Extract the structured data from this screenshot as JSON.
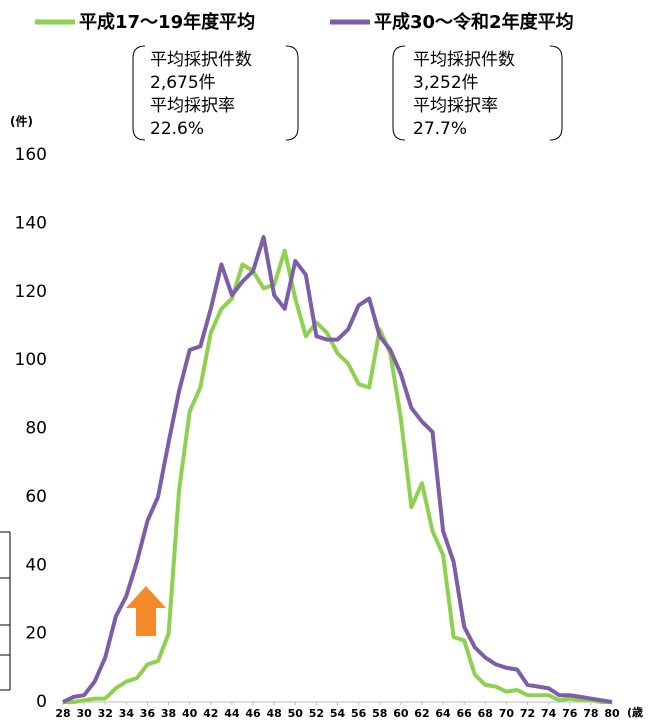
{
  "chart_data": {
    "type": "line",
    "y_label": "(件)",
    "x_label": "(歳",
    "xlim": [
      28,
      80
    ],
    "ylim": [
      0,
      160
    ],
    "xticks": [
      28,
      30,
      32,
      34,
      36,
      38,
      40,
      42,
      44,
      46,
      48,
      50,
      52,
      54,
      56,
      58,
      60,
      62,
      64,
      66,
      68,
      70,
      72,
      74,
      76,
      78,
      80
    ],
    "yticks": [
      0,
      20,
      40,
      60,
      80,
      100,
      120,
      140,
      160
    ],
    "x": [
      28,
      29,
      30,
      31,
      32,
      33,
      34,
      35,
      36,
      37,
      38,
      39,
      40,
      41,
      42,
      43,
      44,
      45,
      46,
      47,
      48,
      49,
      50,
      51,
      52,
      53,
      54,
      55,
      56,
      57,
      58,
      59,
      60,
      61,
      62,
      63,
      64,
      65,
      66,
      67,
      68,
      69,
      70,
      71,
      72,
      73,
      74,
      75,
      76,
      77,
      78,
      79,
      80
    ],
    "series": [
      {
        "name": "平成17～19年度平均",
        "color": "#8dd14f",
        "summary": [
          "平均採択件数",
          "2,675件",
          "平均採択率",
          "22.6%"
        ],
        "values": [
          0,
          0,
          0.5,
          1,
          1,
          4,
          6,
          7,
          11,
          12,
          20,
          62,
          85,
          92,
          108,
          115,
          118,
          128,
          126,
          121,
          122,
          132,
          118,
          107,
          111,
          108,
          102,
          99,
          93,
          92,
          109,
          102,
          83,
          57,
          64,
          50,
          43,
          19,
          18,
          8,
          5,
          4.5,
          3,
          3.5,
          2,
          2,
          2,
          0.5,
          1,
          0.5,
          0.5,
          0,
          0
        ]
      },
      {
        "name": "平成30～令和2年度平均",
        "color": "#7b5ea7",
        "summary": [
          "平均採択件数",
          "3,252件",
          "平均採択率",
          "27.7%"
        ],
        "values": [
          0,
          1.5,
          2,
          6,
          13,
          25,
          31,
          41,
          53,
          60,
          76,
          91,
          103,
          104,
          115,
          128,
          119,
          123,
          126,
          136,
          119,
          115,
          129,
          125,
          107,
          106,
          106,
          109,
          116,
          118,
          107,
          103,
          96,
          86,
          82,
          79,
          50,
          41,
          22,
          16,
          13,
          11,
          10,
          9.5,
          5,
          4.5,
          4,
          2,
          2,
          1.5,
          1,
          0.5,
          0
        ]
      }
    ]
  }
}
